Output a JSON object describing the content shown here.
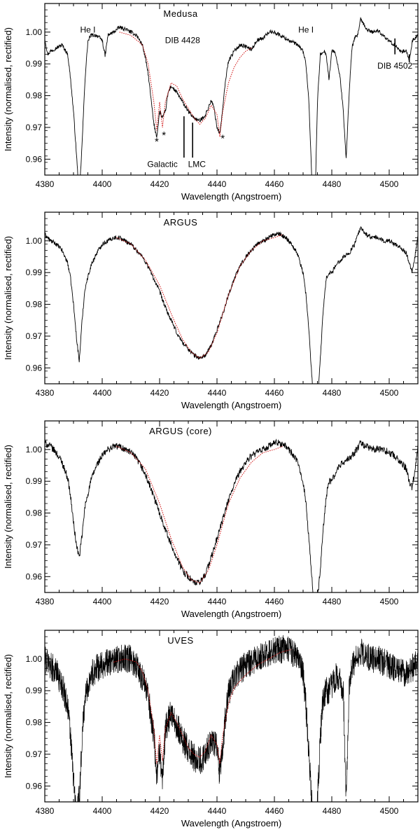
{
  "colors": {
    "observed": "#000000",
    "model": "#d01010"
  },
  "chart_data": [
    {
      "type": "line",
      "title": "Medusa",
      "xlabel": "Wavelength (Angstroem)",
      "ylabel": "Intensity (normalised, rectified)",
      "xlim": [
        4380,
        4510
      ],
      "ylim": [
        0.955,
        1.009
      ],
      "xticks": [
        4380,
        4400,
        4420,
        4440,
        4460,
        4480,
        4500
      ],
      "yticks": [
        "0.96",
        "0.97",
        "0.98",
        "0.99",
        "1.00"
      ],
      "noise": 0.0006,
      "series": [
        {
          "role": "observed",
          "x": [
            4380,
            4381,
            4382,
            4384,
            4386,
            4388,
            4389,
            4390,
            4391,
            4392,
            4393,
            4394,
            4395,
            4396,
            4398,
            4400,
            4401,
            4402,
            4404,
            4406,
            4408,
            4410,
            4412,
            4414,
            4415,
            4416,
            4417,
            4418,
            4419,
            4420,
            4421,
            4422,
            4423,
            4424,
            4426,
            4428,
            4430,
            4432,
            4434,
            4436,
            4438,
            4439,
            4440,
            4441,
            4442,
            4443,
            4444,
            4446,
            4448,
            4450,
            4452,
            4454,
            4456,
            4458,
            4460,
            4462,
            4464,
            4466,
            4468,
            4470,
            4471,
            4472,
            4473,
            4474,
            4475,
            4476,
            4477,
            4478,
            4479,
            4480,
            4481,
            4482,
            4483,
            4484,
            4485,
            4486,
            4487,
            4488,
            4489,
            4490,
            4492,
            4494,
            4496,
            4498,
            4500,
            4502,
            4504,
            4506,
            4507,
            4508,
            4509,
            4510
          ],
          "y": [
            0.998,
            0.993,
            0.994,
            0.995,
            0.996,
            0.993,
            0.985,
            0.975,
            0.962,
            0.948,
            0.965,
            0.985,
            0.997,
            0.999,
            0.999,
            0.9975,
            0.9925,
            0.999,
            1.0,
            1.0015,
            1.001,
            1.0,
            0.999,
            0.996,
            0.992,
            0.987,
            0.979,
            0.971,
            0.967,
            0.975,
            0.973,
            0.975,
            0.981,
            0.983,
            0.981,
            0.978,
            0.975,
            0.973,
            0.972,
            0.974,
            0.9785,
            0.976,
            0.97,
            0.968,
            0.976,
            0.985,
            0.991,
            0.994,
            0.996,
            0.9955,
            0.9945,
            0.9975,
            0.998,
            1.0,
            1.0,
            0.999,
            0.998,
            0.997,
            0.996,
            0.994,
            0.99,
            0.978,
            0.955,
            0.94,
            0.978,
            0.993,
            0.994,
            0.9935,
            0.985,
            0.994,
            0.994,
            0.99,
            0.985,
            0.975,
            0.96,
            0.98,
            0.995,
            0.998,
            0.999,
            1.004,
            1.001,
            1.0,
            1.0005,
            0.999,
            0.997,
            0.996,
            0.994,
            0.994,
            0.991,
            0.997,
            0.998,
            0.999
          ]
        },
        {
          "role": "model",
          "x": [
            4406,
            4410,
            4414,
            4416,
            4418,
            4419,
            4420,
            4421,
            4422,
            4424,
            4426,
            4428,
            4430,
            4432,
            4434,
            4436,
            4438,
            4440,
            4441,
            4442,
            4444,
            4446,
            4448,
            4450,
            4452
          ],
          "y": [
            1.0,
            0.999,
            0.996,
            0.99,
            0.978,
            0.969,
            0.978,
            0.97,
            0.978,
            0.984,
            0.983,
            0.979,
            0.976,
            0.973,
            0.971,
            0.973,
            0.977,
            0.974,
            0.967,
            0.975,
            0.984,
            0.989,
            0.992,
            0.994,
            0.995
          ]
        }
      ],
      "annotations": [
        {
          "text": "He I",
          "x": 4395,
          "y": 0.9998,
          "anchor": "middle",
          "size": 12
        },
        {
          "text": "DIB 4428",
          "x": 4428,
          "y": 0.9965,
          "anchor": "middle",
          "size": 12
        },
        {
          "text": "He I",
          "x": 4471,
          "y": 0.9998,
          "anchor": "middle",
          "size": 12
        },
        {
          "text": "DIB 4502",
          "x": 4502,
          "y": 0.9885,
          "anchor": "middle",
          "size": 12
        },
        {
          "text": "*",
          "x": 4419,
          "y": 0.9645,
          "anchor": "middle",
          "size": 15
        },
        {
          "text": "*",
          "x": 4421.5,
          "y": 0.9665,
          "anchor": "middle",
          "size": 15
        },
        {
          "text": "*",
          "x": 4442,
          "y": 0.9655,
          "anchor": "middle",
          "size": 15
        },
        {
          "text": "Galactic",
          "x": 4421,
          "y": 0.9575,
          "anchor": "middle",
          "size": 12
        },
        {
          "text": "LMC",
          "x": 4433,
          "y": 0.9575,
          "anchor": "middle",
          "size": 12
        }
      ],
      "markers": [
        {
          "x": 4428.5,
          "y1": 0.9735,
          "y2": 0.9605
        },
        {
          "x": 4431.5,
          "y1": 0.9715,
          "y2": 0.9605
        },
        {
          "x": 4502,
          "y1": 0.998,
          "y2": 0.993
        },
        {
          "x": 4507,
          "y1": 0.993,
          "y2": 0.9905
        }
      ]
    },
    {
      "type": "line",
      "title": "ARGUS",
      "xlabel": "Wavelength (Angstroem)",
      "ylabel": "Intensity (normalised, rectified)",
      "xlim": [
        4380,
        4510
      ],
      "ylim": [
        0.955,
        1.009
      ],
      "xticks": [
        4380,
        4400,
        4420,
        4440,
        4460,
        4480,
        4500
      ],
      "yticks": [
        "0.96",
        "0.97",
        "0.98",
        "0.99",
        "1.00"
      ],
      "noise": 0.0007,
      "series": [
        {
          "role": "observed",
          "x": [
            4380,
            4382,
            4384,
            4386,
            4388,
            4389,
            4390,
            4391,
            4392,
            4393,
            4394,
            4396,
            4398,
            4400,
            4402,
            4404,
            4406,
            4408,
            4410,
            4412,
            4414,
            4416,
            4418,
            4420,
            4422,
            4424,
            4426,
            4428,
            4430,
            4432,
            4434,
            4436,
            4438,
            4440,
            4442,
            4444,
            4446,
            4448,
            4450,
            4452,
            4454,
            4456,
            4458,
            4460,
            4462,
            4464,
            4466,
            4468,
            4470,
            4471,
            4472,
            4473,
            4474,
            4475,
            4476,
            4477,
            4478,
            4479,
            4480,
            4482,
            4484,
            4486,
            4488,
            4490,
            4492,
            4494,
            4496,
            4498,
            4500,
            4502,
            4504,
            4506,
            4507,
            4508,
            4509,
            4510
          ],
          "y": [
            1.002,
            1.0,
            0.999,
            0.997,
            0.993,
            0.988,
            0.98,
            0.97,
            0.962,
            0.975,
            0.985,
            0.992,
            0.996,
            0.999,
            1.0,
            1.001,
            1.001,
            1.0,
            0.999,
            0.997,
            0.995,
            0.992,
            0.988,
            0.984,
            0.979,
            0.975,
            0.971,
            0.968,
            0.966,
            0.964,
            0.963,
            0.964,
            0.967,
            0.972,
            0.977,
            0.983,
            0.988,
            0.992,
            0.995,
            0.997,
            0.999,
            1.0,
            1.001,
            1.002,
            1.002,
            1.001,
            0.999,
            0.996,
            0.99,
            0.983,
            0.972,
            0.958,
            0.945,
            0.95,
            0.963,
            0.978,
            0.988,
            0.99,
            0.99,
            0.993,
            0.995,
            0.996,
            0.999,
            1.004,
            1.002,
            1.001,
            1.001,
            1.0,
            1.0,
            0.999,
            0.998,
            0.996,
            0.993,
            0.99,
            0.995,
            1.001
          ]
        },
        {
          "role": "model",
          "x": [
            4405,
            4410,
            4415,
            4420,
            4425,
            4428,
            4431,
            4434,
            4437,
            4440,
            4444,
            4448,
            4452,
            4456,
            4460,
            4463
          ],
          "y": [
            1.001,
            0.999,
            0.994,
            0.986,
            0.975,
            0.969,
            0.965,
            0.963,
            0.965,
            0.971,
            0.983,
            0.992,
            0.997,
            1.0,
            1.001,
            1.002
          ]
        }
      ],
      "annotations": [],
      "markers": []
    },
    {
      "type": "line",
      "title": "ARGUS (core)",
      "xlabel": "Wavelength (Angstroem)",
      "ylabel": "Intensity (normalised, rectified)",
      "xlim": [
        4380,
        4510
      ],
      "ylim": [
        0.955,
        1.009
      ],
      "xticks": [
        4380,
        4400,
        4420,
        4440,
        4460,
        4480,
        4500
      ],
      "yticks": [
        "0.96",
        "0.97",
        "0.98",
        "0.99",
        "1.00"
      ],
      "noise": 0.0011,
      "series": [
        {
          "role": "observed",
          "x": [
            4380,
            4382,
            4384,
            4386,
            4388,
            4389,
            4390,
            4391,
            4392,
            4393,
            4394,
            4396,
            4398,
            4400,
            4402,
            4404,
            4406,
            4408,
            4410,
            4412,
            4414,
            4416,
            4418,
            4420,
            4422,
            4424,
            4426,
            4428,
            4430,
            4432,
            4434,
            4436,
            4438,
            4440,
            4442,
            4444,
            4446,
            4448,
            4450,
            4452,
            4454,
            4456,
            4458,
            4460,
            4462,
            4464,
            4466,
            4468,
            4470,
            4471,
            4472,
            4473,
            4474,
            4475,
            4476,
            4477,
            4478,
            4479,
            4480,
            4482,
            4484,
            4486,
            4488,
            4490,
            4492,
            4494,
            4496,
            4498,
            4500,
            4502,
            4504,
            4506,
            4507,
            4508,
            4509,
            4510
          ],
          "y": [
            1.002,
            1.001,
            0.999,
            0.996,
            0.991,
            0.985,
            0.977,
            0.97,
            0.966,
            0.973,
            0.982,
            0.99,
            0.995,
            0.998,
            1.0,
            1.001,
            1.001,
            1.0,
            0.999,
            0.997,
            0.994,
            0.99,
            0.985,
            0.98,
            0.975,
            0.97,
            0.966,
            0.962,
            0.96,
            0.958,
            0.958,
            0.961,
            0.966,
            0.972,
            0.978,
            0.984,
            0.989,
            0.993,
            0.996,
            0.998,
            0.999,
            1.0,
            1.001,
            1.002,
            1.002,
            1.001,
            0.999,
            0.996,
            0.99,
            0.983,
            0.972,
            0.96,
            0.95,
            0.953,
            0.962,
            0.975,
            0.985,
            0.99,
            0.99,
            0.994,
            0.996,
            0.997,
            0.999,
            1.002,
            1.001,
            1.0,
            1.0,
            1.0,
            0.999,
            0.998,
            0.996,
            0.994,
            0.99,
            0.988,
            0.994,
            1.001
          ]
        },
        {
          "role": "model",
          "x": [
            4405,
            4410,
            4415,
            4420,
            4424,
            4428,
            4431,
            4434,
            4437,
            4440,
            4444,
            4448,
            4452,
            4456,
            4460,
            4463
          ],
          "y": [
            1.001,
            0.999,
            0.994,
            0.983,
            0.972,
            0.963,
            0.959,
            0.958,
            0.962,
            0.97,
            0.983,
            0.991,
            0.996,
            0.999,
            1.0,
            1.001
          ]
        }
      ],
      "annotations": [],
      "markers": []
    },
    {
      "type": "line",
      "title": "UVES",
      "xlabel": "Wavelength (Angstroem)",
      "ylabel": "Intensity (normalised, rectified)",
      "xlim": [
        4380,
        4510
      ],
      "ylim": [
        0.955,
        1.009
      ],
      "xticks": [
        4380,
        4400,
        4420,
        4440,
        4460,
        4480,
        4500
      ],
      "yticks": [
        "0.96",
        "0.97",
        "0.98",
        "0.99",
        "1.00"
      ],
      "noise": 0.0045,
      "series": [
        {
          "role": "observed",
          "x": [
            4380,
            4382,
            4384,
            4386,
            4388,
            4389,
            4390,
            4391,
            4392,
            4393,
            4394,
            4396,
            4398,
            4400,
            4402,
            4404,
            4406,
            4408,
            4410,
            4412,
            4414,
            4416,
            4418,
            4419,
            4420,
            4421,
            4422,
            4424,
            4426,
            4428,
            4430,
            4432,
            4434,
            4436,
            4438,
            4440,
            4441,
            4442,
            4443,
            4444,
            4446,
            4448,
            4450,
            4452,
            4454,
            4456,
            4458,
            4460,
            4462,
            4464,
            4466,
            4468,
            4470,
            4471,
            4472,
            4473,
            4474,
            4475,
            4476,
            4477,
            4478,
            4479,
            4480,
            4482,
            4484,
            4485,
            4486,
            4487,
            4488,
            4490,
            4492,
            4494,
            4496,
            4498,
            4500,
            4502,
            4504,
            4506,
            4508,
            4510
          ],
          "y": [
            1.0,
            0.998,
            0.996,
            0.992,
            0.985,
            0.975,
            0.962,
            0.95,
            0.956,
            0.975,
            0.988,
            0.995,
            0.997,
            0.998,
            0.999,
            0.999,
            1.0,
            1.0,
            1.0,
            0.998,
            0.994,
            0.988,
            0.976,
            0.963,
            0.972,
            0.961,
            0.978,
            0.983,
            0.979,
            0.975,
            0.971,
            0.969,
            0.968,
            0.97,
            0.975,
            0.972,
            0.963,
            0.972,
            0.982,
            0.989,
            0.994,
            0.996,
            0.998,
            0.999,
            1.0,
            1.001,
            1.002,
            1.003,
            1.003,
            1.003,
            1.002,
            1.0,
            0.995,
            0.985,
            0.97,
            0.955,
            0.945,
            0.955,
            0.975,
            0.988,
            0.99,
            0.99,
            0.992,
            0.995,
            0.99,
            0.955,
            0.99,
            0.998,
            0.999,
            1.002,
            1.001,
            1.0,
            1.0,
            0.999,
            0.998,
            0.997,
            0.996,
            0.995,
            0.997,
            0.999
          ]
        },
        {
          "role": "model",
          "x": [
            4404,
            4408,
            4412,
            4414,
            4416,
            4418,
            4419,
            4420,
            4421,
            4422,
            4424,
            4426,
            4428,
            4430,
            4432,
            4434,
            4436,
            4438,
            4440,
            4441,
            4442,
            4444,
            4446,
            4450,
            4454,
            4458,
            4462,
            4466
          ],
          "y": [
            0.999,
            1.0,
            0.999,
            0.996,
            0.99,
            0.978,
            0.967,
            0.976,
            0.968,
            0.978,
            0.983,
            0.98,
            0.976,
            0.972,
            0.97,
            0.969,
            0.971,
            0.976,
            0.973,
            0.967,
            0.976,
            0.986,
            0.991,
            0.995,
            0.998,
            1.0,
            1.002,
            1.003
          ]
        }
      ],
      "annotations": [],
      "markers": []
    }
  ]
}
